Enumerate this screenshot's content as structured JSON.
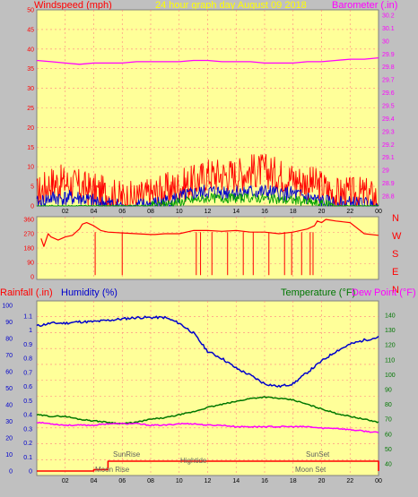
{
  "header": {
    "left_label": "Windspeed (mph)",
    "title": "24 hour graph day   August 09 2018",
    "right_label": "Barometer (.in)"
  },
  "colors": {
    "panel_bg": "#ffff99",
    "grid": "#ff8080",
    "wind": "#ff0000",
    "wind_dir": "#ff0000",
    "gust_blue": "#0000cc",
    "gust_green": "#00a000",
    "barometer": "#ff00ff",
    "humidity": "#0000cc",
    "temperature": "#007700",
    "dew_point": "#ff00ff",
    "rainfall": "#ff0000",
    "title_text": "#ffff00",
    "tide_text": "#606060"
  },
  "chart_data": [
    {
      "type": "line",
      "name": "wind-barometer-panel",
      "x": [
        0,
        1,
        2,
        3,
        4,
        5,
        6,
        7,
        8,
        9,
        10,
        11,
        12,
        13,
        14,
        15,
        16,
        17,
        18,
        19,
        20,
        21,
        22,
        23,
        24
      ],
      "xticks": [
        "02",
        "04",
        "06",
        "08",
        "10",
        "12",
        "14",
        "16",
        "18",
        "20",
        "22",
        "00"
      ],
      "y_left_ticks": [
        "0",
        "5",
        "10",
        "15",
        "20",
        "25",
        "30",
        "35",
        "40",
        "45",
        "50"
      ],
      "y_right_ticks": [
        "28.8",
        "28.9",
        "29",
        "29.1",
        "29.2",
        "29.3",
        "29.4",
        "29.5",
        "29.6",
        "29.7",
        "29.8",
        "29.9",
        "30",
        "30.1",
        "30.2"
      ],
      "ylim_left": [
        0,
        50
      ],
      "ylim_right": [
        28.8,
        30.2
      ],
      "grid": true,
      "series": [
        {
          "key": "wind_gust",
          "values": [
            3,
            6,
            6,
            5,
            4,
            3,
            2,
            2,
            3,
            4,
            5,
            6,
            8,
            8,
            8,
            9,
            9,
            8,
            7,
            6,
            5,
            3,
            3,
            3,
            2
          ]
        },
        {
          "key": "wind_avg",
          "values": [
            0.5,
            2,
            2,
            2,
            1,
            0.5,
            0,
            0,
            0.3,
            1,
            2,
            3,
            3.5,
            3.5,
            3.5,
            3.5,
            3.5,
            3,
            3,
            2,
            1,
            0.5,
            0.5,
            0.3,
            0
          ]
        },
        {
          "key": "wind_low",
          "values": [
            0,
            0,
            0,
            0,
            0,
            0,
            0,
            0,
            0,
            0.5,
            1,
            1.5,
            2,
            2,
            2,
            2,
            2,
            1.5,
            1.5,
            1,
            0.5,
            0,
            0,
            0,
            0
          ]
        },
        {
          "key": "barometer",
          "values": [
            29.85,
            29.84,
            29.83,
            29.82,
            29.83,
            29.83,
            29.83,
            29.84,
            29.84,
            29.84,
            29.84,
            29.85,
            29.85,
            29.84,
            29.84,
            29.84,
            29.83,
            29.83,
            29.83,
            29.84,
            29.84,
            29.85,
            29.86,
            29.86,
            29.87
          ]
        }
      ]
    },
    {
      "type": "line",
      "name": "wind-direction-panel",
      "y_ticks": [
        "0",
        "90",
        "180",
        "270",
        "360"
      ],
      "ylim": [
        0,
        360
      ],
      "compass_labels": [
        "N",
        "W",
        "S",
        "E",
        "N"
      ],
      "x": [
        0.3,
        0.5,
        0.8,
        1,
        1.5,
        2,
        2.5,
        3,
        3.2,
        3.5,
        4,
        4.5,
        5,
        6,
        7,
        8,
        8.3,
        9,
        10,
        11,
        12,
        13,
        14,
        15,
        16,
        17,
        18,
        19,
        19.5,
        19.7,
        20,
        20.3,
        21,
        22,
        23,
        24
      ],
      "values": [
        240,
        190,
        270,
        250,
        230,
        250,
        260,
        300,
        330,
        340,
        320,
        290,
        280,
        275,
        270,
        265,
        265,
        270,
        270,
        290,
        290,
        285,
        290,
        280,
        280,
        270,
        280,
        300,
        320,
        350,
        340,
        360,
        350,
        340,
        270,
        260
      ]
    },
    {
      "type": "line",
      "name": "rain-humidity-temperature-panel",
      "x": [
        0,
        1,
        2,
        3,
        4,
        5,
        6,
        7,
        8,
        9,
        10,
        11,
        12,
        13,
        14,
        15,
        16,
        17,
        18,
        19,
        20,
        21,
        22,
        23,
        24
      ],
      "xticks": [
        "02",
        "04",
        "06",
        "08",
        "10",
        "12",
        "14",
        "16",
        "18",
        "20",
        "22",
        "00"
      ],
      "y_left_outer_ticks": [
        "0",
        "10",
        "20",
        "30",
        "40",
        "50",
        "60",
        "70",
        "80",
        "90",
        "100"
      ],
      "y_left_inner_ticks": [
        "0",
        "0.1",
        "0.2",
        "0.3",
        "0.4",
        "0.5",
        "0.6",
        "0.7",
        "0.8",
        "0.9",
        "1",
        "1.1"
      ],
      "y_right_ticks": [
        "40",
        "50",
        "60",
        "70",
        "80",
        "90",
        "100",
        "110",
        "120",
        "130",
        "140"
      ],
      "ylim_left": [
        0,
        1.1
      ],
      "ylim_right": [
        30,
        145
      ],
      "grid": true,
      "series": [
        {
          "key": "humidity",
          "values": [
            1.03,
            1.05,
            1.05,
            1.06,
            1.06,
            1.07,
            1.08,
            1.09,
            1.09,
            1.09,
            1.05,
            0.98,
            0.85,
            0.8,
            0.73,
            0.68,
            0.62,
            0.6,
            0.62,
            0.7,
            0.78,
            0.85,
            0.9,
            0.93,
            0.95
          ]
        },
        {
          "key": "temperature",
          "values": [
            73,
            72,
            72,
            70,
            69,
            68,
            67,
            68,
            70,
            71,
            73,
            75,
            78,
            80,
            82,
            84,
            85,
            84,
            83,
            80,
            77,
            74,
            72,
            70,
            68
          ]
        },
        {
          "key": "dew_point",
          "values": [
            68,
            67,
            66,
            66,
            66,
            67,
            67,
            67,
            66,
            66,
            67,
            67,
            66,
            66,
            65,
            65,
            65,
            65,
            65,
            65,
            64,
            64,
            63,
            62,
            61
          ]
        },
        {
          "key": "rainfall",
          "values": [
            0,
            0,
            0,
            0,
            0.01,
            0.07,
            0.07,
            0.07,
            0.07,
            0.07,
            0.07,
            0.07,
            0.07,
            0.07,
            0.07,
            0.07,
            0.07,
            0.07,
            0.07,
            0.07,
            0.07,
            0.07,
            0.07,
            0.07,
            0.07
          ]
        }
      ],
      "legend": {
        "rainfall": "Rainfall (.in)",
        "humidity": "Humidity (%)",
        "temperature": "Temperature (°F)",
        "dew_point": "Dew Point (°F)"
      },
      "annotations": {
        "sunrise": "SunRise",
        "moonrise": "Moon Rise",
        "hightide": "Hightide",
        "sunset": "SunSet",
        "moonset": "Moon Set"
      }
    }
  ]
}
